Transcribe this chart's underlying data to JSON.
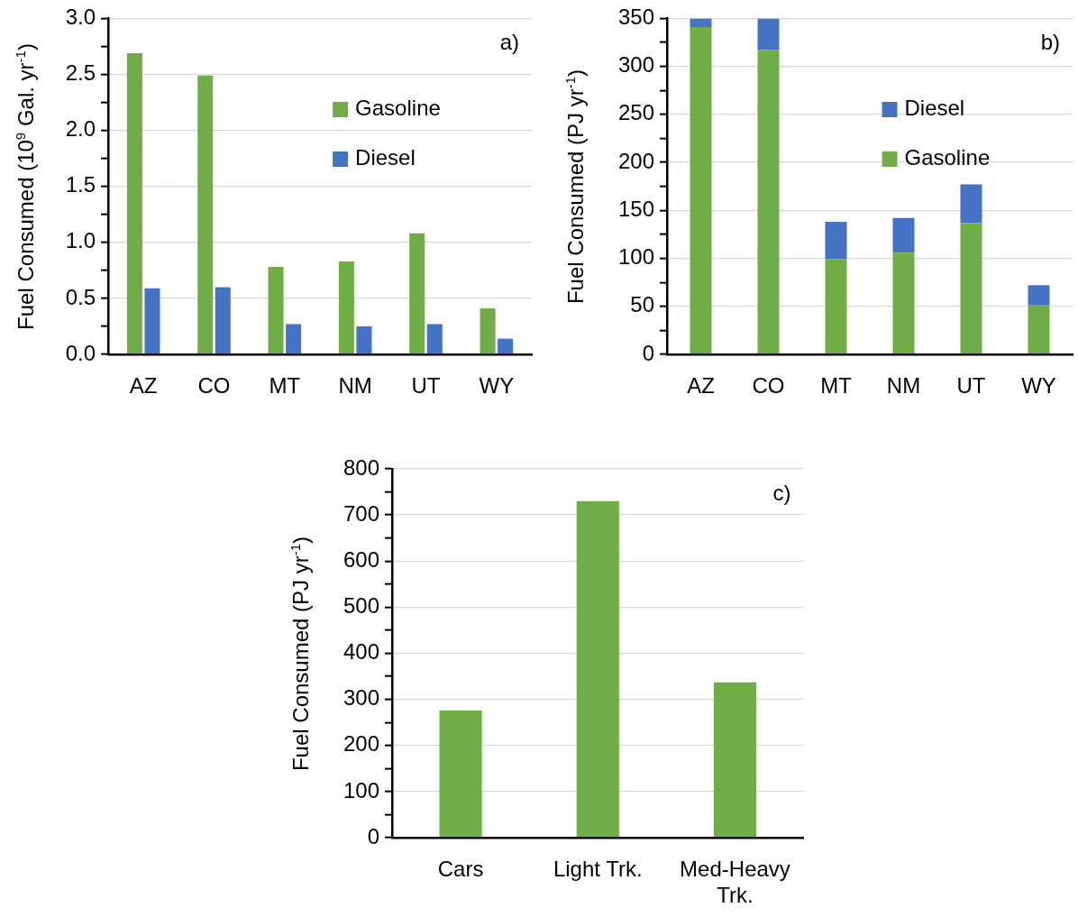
{
  "chart_data": [
    {
      "type": "bar",
      "title": "a)",
      "ylabel": "Fuel Consumed (10$^{9}$ Gal. yr$^{-1}$)",
      "categories": [
        "AZ",
        "CO",
        "MT",
        "NM",
        "UT",
        "WY"
      ],
      "series": [
        {
          "name": "Gasoline",
          "color": "#70ad47",
          "values": [
            2.69,
            2.49,
            0.78,
            0.83,
            1.08,
            0.41
          ]
        },
        {
          "name": "Diesel",
          "color": "#4472c4",
          "values": [
            0.59,
            0.6,
            0.27,
            0.25,
            0.27,
            0.14
          ]
        }
      ],
      "ylim": [
        0,
        3
      ],
      "yticks": [
        {
          "value": 0,
          "label": "0.0"
        },
        {
          "value": 0.25,
          "label": null
        },
        {
          "value": 0.5,
          "label": "0.5"
        },
        {
          "value": 0.75,
          "label": null
        },
        {
          "value": 1,
          "label": "1.0"
        },
        {
          "value": 1.25,
          "label": null
        },
        {
          "value": 1.5,
          "label": "1.5"
        },
        {
          "value": 1.75,
          "label": null
        },
        {
          "value": 2,
          "label": "2.0"
        },
        {
          "value": 2.25,
          "label": null
        },
        {
          "value": 2.5,
          "label": "2.5"
        },
        {
          "value": 2.75,
          "label": null
        },
        {
          "value": 3,
          "label": "3.0"
        }
      ],
      "grid": "y",
      "legend": "right"
    },
    {
      "type": "bar",
      "title": "b)",
      "ylabel": "Fuel Consumed (PJ yr$^{-1}$)",
      "categories": [
        "AZ",
        "CO",
        "MT",
        "NM",
        "UT",
        "WY"
      ],
      "stacked": true,
      "series": [
        {
          "name": "Gasoline",
          "color": "#70ad47",
          "values": [
            341,
            317,
            99,
            106,
            137,
            51
          ]
        },
        {
          "name": "Diesel",
          "color": "#4472c4",
          "values": [
            9,
            33,
            39,
            36,
            40,
            21
          ]
        }
      ],
      "ylim": [
        0,
        350
      ],
      "yticks": [
        0,
        {
          "value": 25,
          "label": null
        },
        50,
        {
          "value": 75,
          "label": null
        },
        100,
        {
          "value": 125,
          "label": null
        },
        150,
        {
          "value": 175,
          "label": null
        },
        200,
        {
          "value": 225,
          "label": null
        },
        250,
        {
          "value": 275,
          "label": null
        },
        300,
        {
          "value": 325,
          "label": null
        },
        350
      ],
      "grid": "y",
      "legend": "right"
    },
    {
      "type": "bar",
      "title": "c)",
      "ylabel": "Fuel Consumed (PJ yr$^{-1}$)",
      "categories": [
        "Cars",
        "Light Trk.",
        "Med-Heavy Trk."
      ],
      "values": [
        276,
        730,
        337
      ],
      "color": "#70ad47",
      "ylim": [
        0,
        800
      ],
      "yticks": [
        0,
        {
          "value": 50,
          "label": null
        },
        100,
        {
          "value": 150,
          "label": null
        },
        200,
        {
          "value": 250,
          "label": null
        },
        300,
        {
          "value": 350,
          "label": null
        },
        400,
        {
          "value": 450,
          "label": null
        },
        500,
        {
          "value": 550,
          "label": null
        },
        600,
        {
          "value": 650,
          "label": null
        },
        700,
        {
          "value": 750,
          "label": null
        },
        800
      ],
      "grid": "y"
    }
  ]
}
